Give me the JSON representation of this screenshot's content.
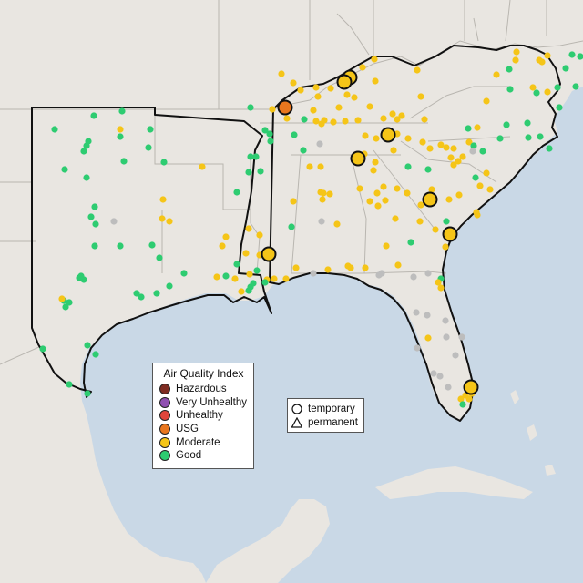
{
  "legend": {
    "title": "Air Quality Index",
    "categories": [
      {
        "label": "Hazardous",
        "color": "#7e2c22"
      },
      {
        "label": "Very Unhealthy",
        "color": "#8f4fb0"
      },
      {
        "label": "Unhealthy",
        "color": "#e0453b"
      },
      {
        "label": "USG",
        "color": "#e8761e"
      },
      {
        "label": "Moderate",
        "color": "#f5c518"
      },
      {
        "label": "Good",
        "color": "#2ecc71"
      }
    ]
  },
  "monitor_types": {
    "temporary_label": "temporary",
    "permanent_label": "permanent",
    "temporary_icon": "circle-icon",
    "permanent_icon": "triangle-icon"
  },
  "colors": {
    "water": "#c9d8e6",
    "land": "#e9e6e1",
    "region_border": "#111111",
    "no_data": "#bdbdbd"
  }
}
